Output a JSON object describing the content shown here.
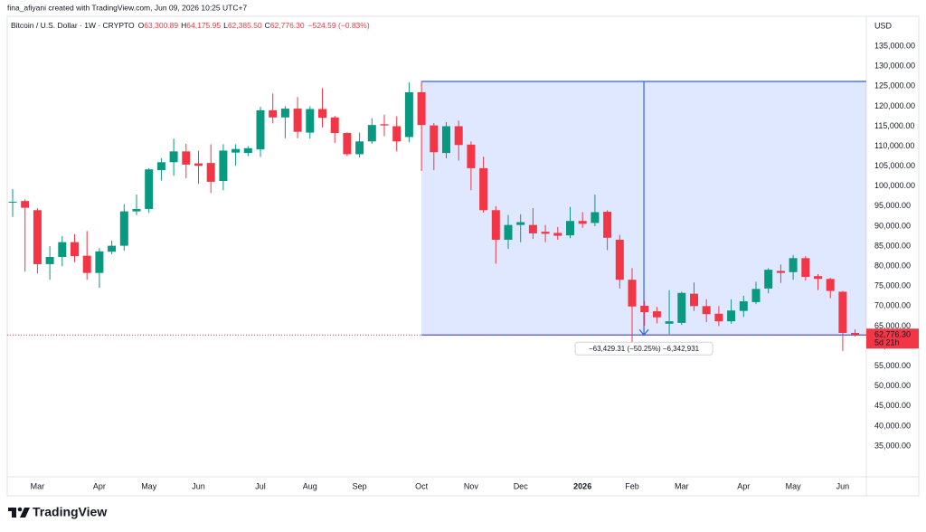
{
  "credit": "fina_afiyani created with TradingView.com, Jun 09, 2026 10:25 UTC+7",
  "brand": "TradingView",
  "chart_data": {
    "type": "candlestick",
    "symbol": "Bitcoin / U.S. Dollar · 1W · CRYPTO",
    "ohlc_legend": [
      {
        "key": "O",
        "text": "63,300.89"
      },
      {
        "key": "H",
        "text": "64,175.95"
      },
      {
        "key": "L",
        "text": "62,385.50"
      },
      {
        "key": "C",
        "text": "62,776.30"
      }
    ],
    "change_text": "−524.59 (−0.83%)",
    "currency": "USD",
    "categories": [
      null,
      null,
      "Mar",
      null,
      null,
      null,
      null,
      "Apr",
      null,
      null,
      null,
      "May",
      null,
      null,
      null,
      "Jun",
      null,
      null,
      null,
      null,
      "Jul",
      null,
      null,
      null,
      "Aug",
      null,
      null,
      null,
      "Sep",
      null,
      null,
      null,
      null,
      "Oct",
      null,
      null,
      null,
      "Nov",
      null,
      null,
      null,
      "Dec",
      null,
      null,
      null,
      null,
      "2026",
      null,
      null,
      null,
      "Feb",
      null,
      null,
      null,
      "Mar",
      null,
      null,
      null,
      null,
      "Apr",
      null,
      null,
      null,
      "May",
      null,
      null,
      null,
      "Jun",
      null
    ],
    "open": [
      95900,
      96300,
      94000,
      80500,
      82300,
      86000,
      82600,
      78300,
      83600,
      85100,
      93700,
      94300,
      104000,
      106000,
      108700,
      105700,
      105800,
      101300,
      108400,
      108300,
      109200,
      119000,
      117200,
      119400,
      113400,
      119300,
      117200,
      113300,
      108000,
      111200,
      115500,
      115000,
      112300,
      123500,
      115200,
      108300,
      115000,
      110400,
      104500,
      94000,
      86600,
      90300,
      90300,
      88600,
      88300,
      87700,
      91300,
      90800,
      93600,
      86600,
      76600,
      70100,
      68700,
      65600,
      65800,
      73100,
      70000,
      68100,
      66200,
      68800,
      71000,
      74400,
      78800,
      78500,
      82000,
      77500,
      76800,
      73600,
      63300.89
    ],
    "high": [
      99300,
      96700,
      94500,
      85000,
      87500,
      88000,
      88800,
      84500,
      86400,
      95500,
      97900,
      104500,
      107000,
      111900,
      110600,
      108900,
      110500,
      110500,
      110500,
      110000,
      119800,
      123200,
      120000,
      122300,
      120000,
      124500,
      117600,
      113500,
      113400,
      117000,
      117900,
      117500,
      126000,
      126200,
      115800,
      116000,
      116400,
      111200,
      107400,
      95000,
      92800,
      93000,
      94500,
      90300,
      89800,
      94800,
      93500,
      97900,
      94000,
      87800,
      79500,
      71300,
      69800,
      74000,
      73600,
      75900,
      71700,
      70000,
      71700,
      72600,
      76100,
      79500,
      80400,
      82800,
      82500,
      78000,
      77100,
      73800,
      64175.95
    ],
    "low": [
      92300,
      78600,
      78200,
      76600,
      80000,
      81000,
      76600,
      74600,
      83000,
      83900,
      92800,
      93300,
      101400,
      102600,
      102000,
      100600,
      98300,
      99000,
      105100,
      107500,
      107300,
      115700,
      112000,
      112000,
      111900,
      114700,
      110800,
      107500,
      107200,
      110600,
      112500,
      108700,
      111000,
      103800,
      104000,
      107000,
      106400,
      99000,
      93400,
      80600,
      84300,
      86000,
      86800,
      86000,
      86600,
      87000,
      89600,
      90000,
      84000,
      74400,
      60000,
      65100,
      65700,
      63000,
      65300,
      68800,
      66000,
      65000,
      65600,
      67300,
      70500,
      73200,
      75800,
      76600,
      76400,
      74000,
      72000,
      58800,
      62385.5
    ],
    "close": [
      96100,
      94600,
      80500,
      82300,
      86000,
      82500,
      78300,
      83700,
      85100,
      93700,
      94300,
      104200,
      106000,
      108700,
      105400,
      105100,
      101100,
      108900,
      109300,
      109500,
      119000,
      117200,
      119400,
      113600,
      119300,
      117100,
      113300,
      108000,
      111200,
      115300,
      115200,
      111200,
      123500,
      115300,
      108500,
      115000,
      110300,
      104500,
      94000,
      86600,
      90300,
      91000,
      88200,
      88100,
      87600,
      91300,
      90600,
      93500,
      87100,
      76600,
      69900,
      68500,
      67200,
      66200,
      73300,
      70000,
      68000,
      66200,
      68900,
      71200,
      74300,
      79100,
      78300,
      82000,
      77300,
      76800,
      73800,
      63300.89,
      62776.3
    ],
    "up_color": "#089981",
    "down_color": "#f23645",
    "ylim": [
      27300,
      142500
    ],
    "yticks": [
      {
        "value": 35000,
        "label": "35,000.00"
      },
      {
        "value": 40000,
        "label": "40,000.00"
      },
      {
        "value": 45000,
        "label": "45,000.00"
      },
      {
        "value": 50000,
        "label": "50,000.00"
      },
      {
        "value": 55000,
        "label": "55,000.00"
      },
      {
        "value": 60000,
        "label": "60,000.00"
      },
      {
        "value": 65000,
        "label": "65,000.00"
      },
      {
        "value": 70000,
        "label": "70,000.00"
      },
      {
        "value": 75000,
        "label": "75,000.00"
      },
      {
        "value": 80000,
        "label": "80,000.00"
      },
      {
        "value": 85000,
        "label": "85,000.00"
      },
      {
        "value": 90000,
        "label": "90,000.00"
      },
      {
        "value": 95000,
        "label": "95,000.00"
      },
      {
        "value": 100000,
        "label": "100,000.00"
      },
      {
        "value": 105000,
        "label": "105,000.00"
      },
      {
        "value": 110000,
        "label": "110,000.00"
      },
      {
        "value": 115000,
        "label": "115,000.00"
      },
      {
        "value": 120000,
        "label": "120,000.00"
      },
      {
        "value": 125000,
        "label": "125,000.00"
      },
      {
        "value": 130000,
        "label": "130,000.00"
      },
      {
        "value": 135000,
        "label": "135,000.00"
      }
    ],
    "last_price": {
      "value": 62776.3,
      "label": "62,776.30"
    },
    "countdown": "5d 21h",
    "measure": {
      "from": 126205.61,
      "to": 62776.3,
      "from_index": 33,
      "color": "#2962ff",
      "label": "−63,429.31 (−50.25%) −6,342,931"
    }
  }
}
